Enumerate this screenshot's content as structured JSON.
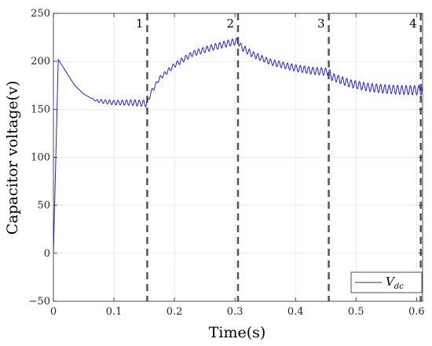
{
  "chart_data": {
    "type": "line",
    "xlabel": "Time(s)",
    "ylabel": "Capacitor voltage(v)",
    "xlim": [
      0,
      0.61
    ],
    "ylim": [
      -50,
      250
    ],
    "x_ticks": [
      "0",
      "0.1",
      "0.2",
      "0.3",
      "0.4",
      "0.5",
      "0.6"
    ],
    "y_ticks": [
      "−50",
      "0",
      "50",
      "100",
      "150",
      "200",
      "250"
    ],
    "grid": true,
    "legend_position": "bottom-right",
    "legend": {
      "main": "V",
      "subscript": "dc"
    },
    "series_color": "#1f1fcf",
    "marker_color": "#555555",
    "events": [
      {
        "label": "1",
        "x": 0.155
      },
      {
        "label": "2",
        "x": 0.305
      },
      {
        "label": "3",
        "x": 0.455
      },
      {
        "label": "4",
        "x": 0.607
      }
    ],
    "series": [
      {
        "name": "Vdc",
        "anchors": [
          [
            0,
            0
          ],
          [
            0.004,
            100
          ],
          [
            0.008,
            202
          ],
          [
            0.015,
            195
          ],
          [
            0.025,
            185
          ],
          [
            0.035,
            175
          ],
          [
            0.05,
            166
          ],
          [
            0.07,
            159
          ],
          [
            0.1,
            157
          ],
          [
            0.13,
            157
          ],
          [
            0.155,
            156
          ],
          [
            0.16,
            166
          ],
          [
            0.175,
            182
          ],
          [
            0.2,
            196
          ],
          [
            0.23,
            208
          ],
          [
            0.26,
            214
          ],
          [
            0.29,
            219
          ],
          [
            0.305,
            221
          ],
          [
            0.31,
            215
          ],
          [
            0.33,
            207
          ],
          [
            0.36,
            199
          ],
          [
            0.4,
            193
          ],
          [
            0.43,
            190
          ],
          [
            0.455,
            189
          ],
          [
            0.46,
            184
          ],
          [
            0.49,
            177
          ],
          [
            0.52,
            173
          ],
          [
            0.55,
            171
          ],
          [
            0.58,
            170
          ],
          [
            0.61,
            170
          ]
        ],
        "ripple": {
          "period": 0.007,
          "amplitude_envelope": [
            [
              0,
              0
            ],
            [
              0.06,
              0
            ],
            [
              0.08,
              2
            ],
            [
              0.155,
              3.5
            ],
            [
              0.17,
              2
            ],
            [
              0.2,
              2.5
            ],
            [
              0.3,
              3.5
            ],
            [
              0.35,
              3
            ],
            [
              0.455,
              4
            ],
            [
              0.49,
              4
            ],
            [
              0.61,
              5
            ]
          ]
        }
      }
    ]
  }
}
